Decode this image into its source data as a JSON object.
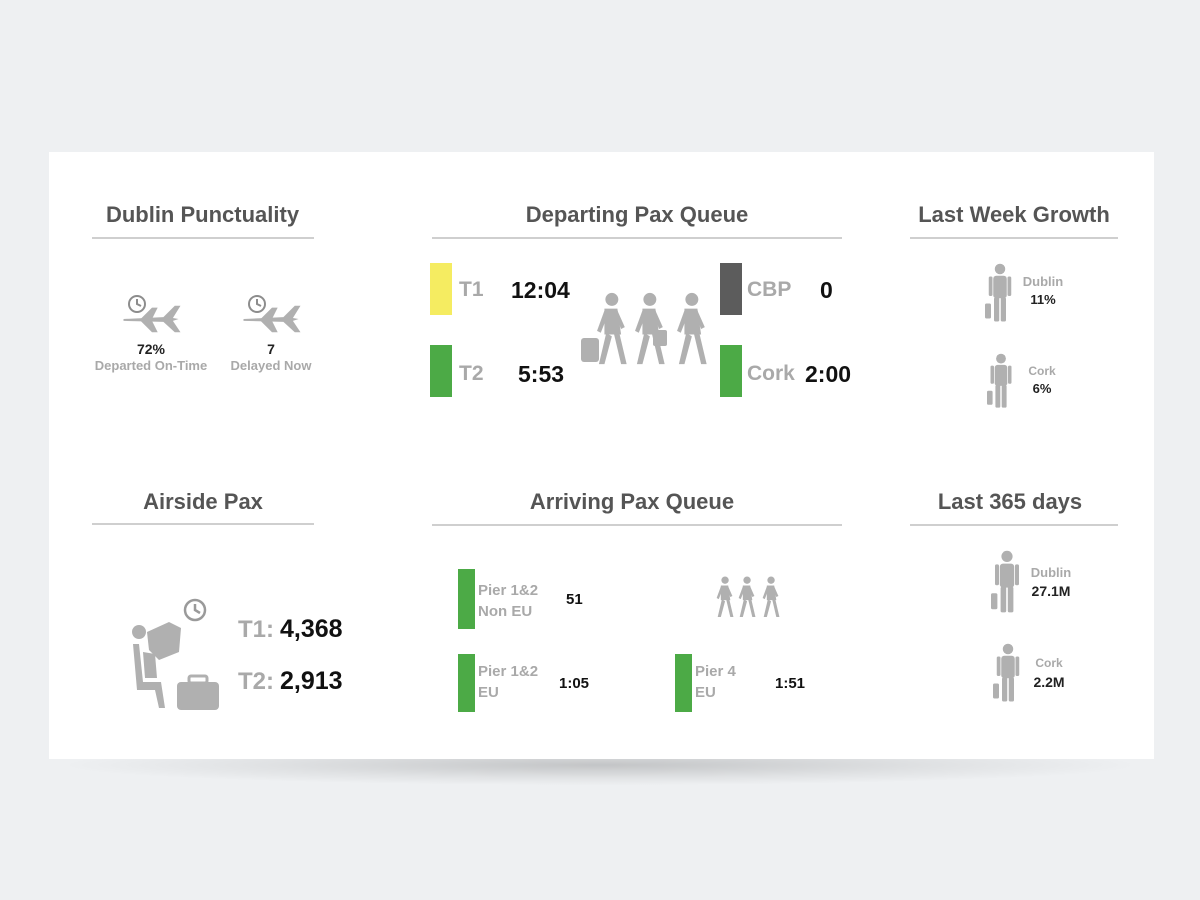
{
  "colors": {
    "yellow": "#f5ec61",
    "green": "#4caa46",
    "dark_gray": "#5c5c5c",
    "icon_gray": "#b0b0b0",
    "title_gray": "#555555"
  },
  "punctuality": {
    "title": "Dublin Punctuality",
    "on_time": {
      "value": "72%",
      "label": "Departed On-Time",
      "icon": "plane-clock-icon"
    },
    "delayed": {
      "value": "7",
      "label": "Delayed Now",
      "icon": "plane-clock-icon"
    }
  },
  "departing_queue": {
    "title": "Departing Pax Queue",
    "icon": "walking-travellers-icon",
    "items": [
      {
        "label": "T1",
        "value": "12:04",
        "color": "yellow"
      },
      {
        "label": "T2",
        "value": "5:53",
        "color": "green"
      },
      {
        "label": "CBP",
        "value": "0",
        "color": "dark_gray"
      },
      {
        "label": "Cork",
        "value": "2:00",
        "color": "green"
      }
    ]
  },
  "last_week_growth": {
    "title": "Last Week Growth",
    "items": [
      {
        "label": "Dublin",
        "value": "11%",
        "icon": "traveller-suitcase-icon"
      },
      {
        "label": "Cork",
        "value": "6%",
        "icon": "traveller-suitcase-icon"
      }
    ]
  },
  "airside_pax": {
    "title": "Airside Pax",
    "icon": "seated-passenger-icon",
    "items": [
      {
        "label": "T1:",
        "value": "4,368"
      },
      {
        "label": "T2:",
        "value": "2,913"
      }
    ]
  },
  "arriving_queue": {
    "title": "Arriving Pax Queue",
    "icon": "walking-travellers-icon",
    "items": [
      {
        "label_line1": "Pier 1&2",
        "label_line2": "Non EU",
        "value": "51",
        "color": "green"
      },
      {
        "label_line1": "Pier 1&2",
        "label_line2": "EU",
        "value": "1:05",
        "color": "green"
      },
      {
        "label_line1": "Pier 4",
        "label_line2": "EU",
        "value": "1:51",
        "color": "green"
      }
    ]
  },
  "last_365": {
    "title": "Last 365 days",
    "items": [
      {
        "label": "Dublin",
        "value": "27.1M",
        "icon": "traveller-suitcase-icon"
      },
      {
        "label": "Cork",
        "value": "2.2M",
        "icon": "traveller-suitcase-icon"
      }
    ]
  }
}
